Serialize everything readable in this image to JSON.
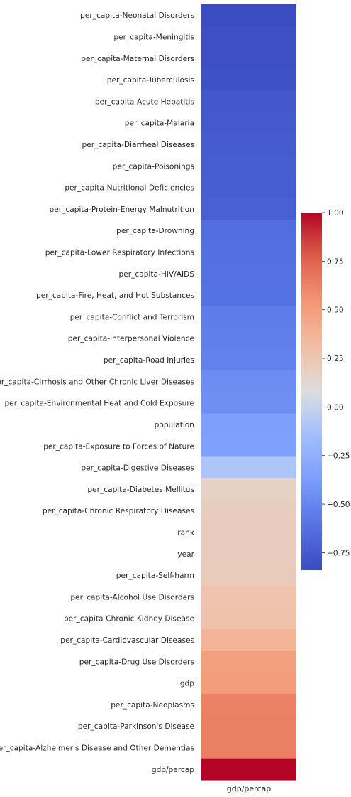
{
  "chart_data": {
    "type": "heatmap",
    "title": "",
    "column_label": "gdp/percap",
    "colormap": "coolwarm",
    "color_range": [
      -0.84,
      1.0
    ],
    "colorbar_ticks": [
      "1.00",
      "0.75",
      "0.50",
      "0.25",
      "0.00",
      "−0.25",
      "−0.50",
      "−0.75"
    ],
    "colorbar_tick_values": [
      1.0,
      0.75,
      0.5,
      0.25,
      0.0,
      -0.25,
      -0.5,
      -0.75
    ],
    "rows": [
      {
        "label": "per_capita-Neonatal Disorders",
        "value": -0.84
      },
      {
        "label": "per_capita-Meningitis",
        "value": -0.82
      },
      {
        "label": "per_capita-Maternal Disorders",
        "value": -0.82
      },
      {
        "label": "per_capita-Tuberculosis",
        "value": -0.81
      },
      {
        "label": "per_capita-Acute Hepatitis",
        "value": -0.77
      },
      {
        "label": "per_capita-Malaria",
        "value": -0.76
      },
      {
        "label": "per_capita-Diarrheal Diseases",
        "value": -0.75
      },
      {
        "label": "per_capita-Poisonings",
        "value": -0.74
      },
      {
        "label": "per_capita-Nutritional Deficiencies",
        "value": -0.73
      },
      {
        "label": "per_capita-Protein-Energy Malnutrition",
        "value": -0.72
      },
      {
        "label": "per_capita-Drowning",
        "value": -0.64
      },
      {
        "label": "per_capita-Lower Respiratory Infections",
        "value": -0.63
      },
      {
        "label": "per_capita-HIV/AIDS",
        "value": -0.62
      },
      {
        "label": "per_capita-Fire, Heat, and Hot Substances",
        "value": -0.61
      },
      {
        "label": "per_capita-Conflict and Terrorism",
        "value": -0.55
      },
      {
        "label": "per_capita-Interpersonal Violence",
        "value": -0.54
      },
      {
        "label": "per_capita-Road Injuries",
        "value": -0.53
      },
      {
        "label": "per_capita-Cirrhosis and Other Chronic Liver Diseases",
        "value": -0.46
      },
      {
        "label": "per_capita-Environmental Heat and Cold Exposure",
        "value": -0.45
      },
      {
        "label": "population",
        "value": -0.36
      },
      {
        "label": "per_capita-Exposure to Forces of Nature",
        "value": -0.35
      },
      {
        "label": "per_capita-Digestive Diseases",
        "value": -0.1
      },
      {
        "label": "per_capita-Diabetes Mellitus",
        "value": 0.17
      },
      {
        "label": "per_capita-Chronic Respiratory Diseases",
        "value": 0.2
      },
      {
        "label": "rank",
        "value": 0.21
      },
      {
        "label": "year",
        "value": 0.21
      },
      {
        "label": "per_capita-Self-harm",
        "value": 0.22
      },
      {
        "label": "per_capita-Alcohol Use Disorders",
        "value": 0.27
      },
      {
        "label": "per_capita-Chronic Kidney Disease",
        "value": 0.28
      },
      {
        "label": "per_capita-Cardiovascular Diseases",
        "value": 0.37
      },
      {
        "label": "per_capita-Drug Use Disorders",
        "value": 0.48
      },
      {
        "label": "gdp",
        "value": 0.5
      },
      {
        "label": "per_capita-Neoplasms",
        "value": 0.63
      },
      {
        "label": "per_capita-Parkinson's Disease",
        "value": 0.64
      },
      {
        "label": "per_capita-Alzheimer's Disease and Other Dementias",
        "value": 0.64
      },
      {
        "label": "gdp/percap",
        "value": 1.0
      }
    ]
  }
}
